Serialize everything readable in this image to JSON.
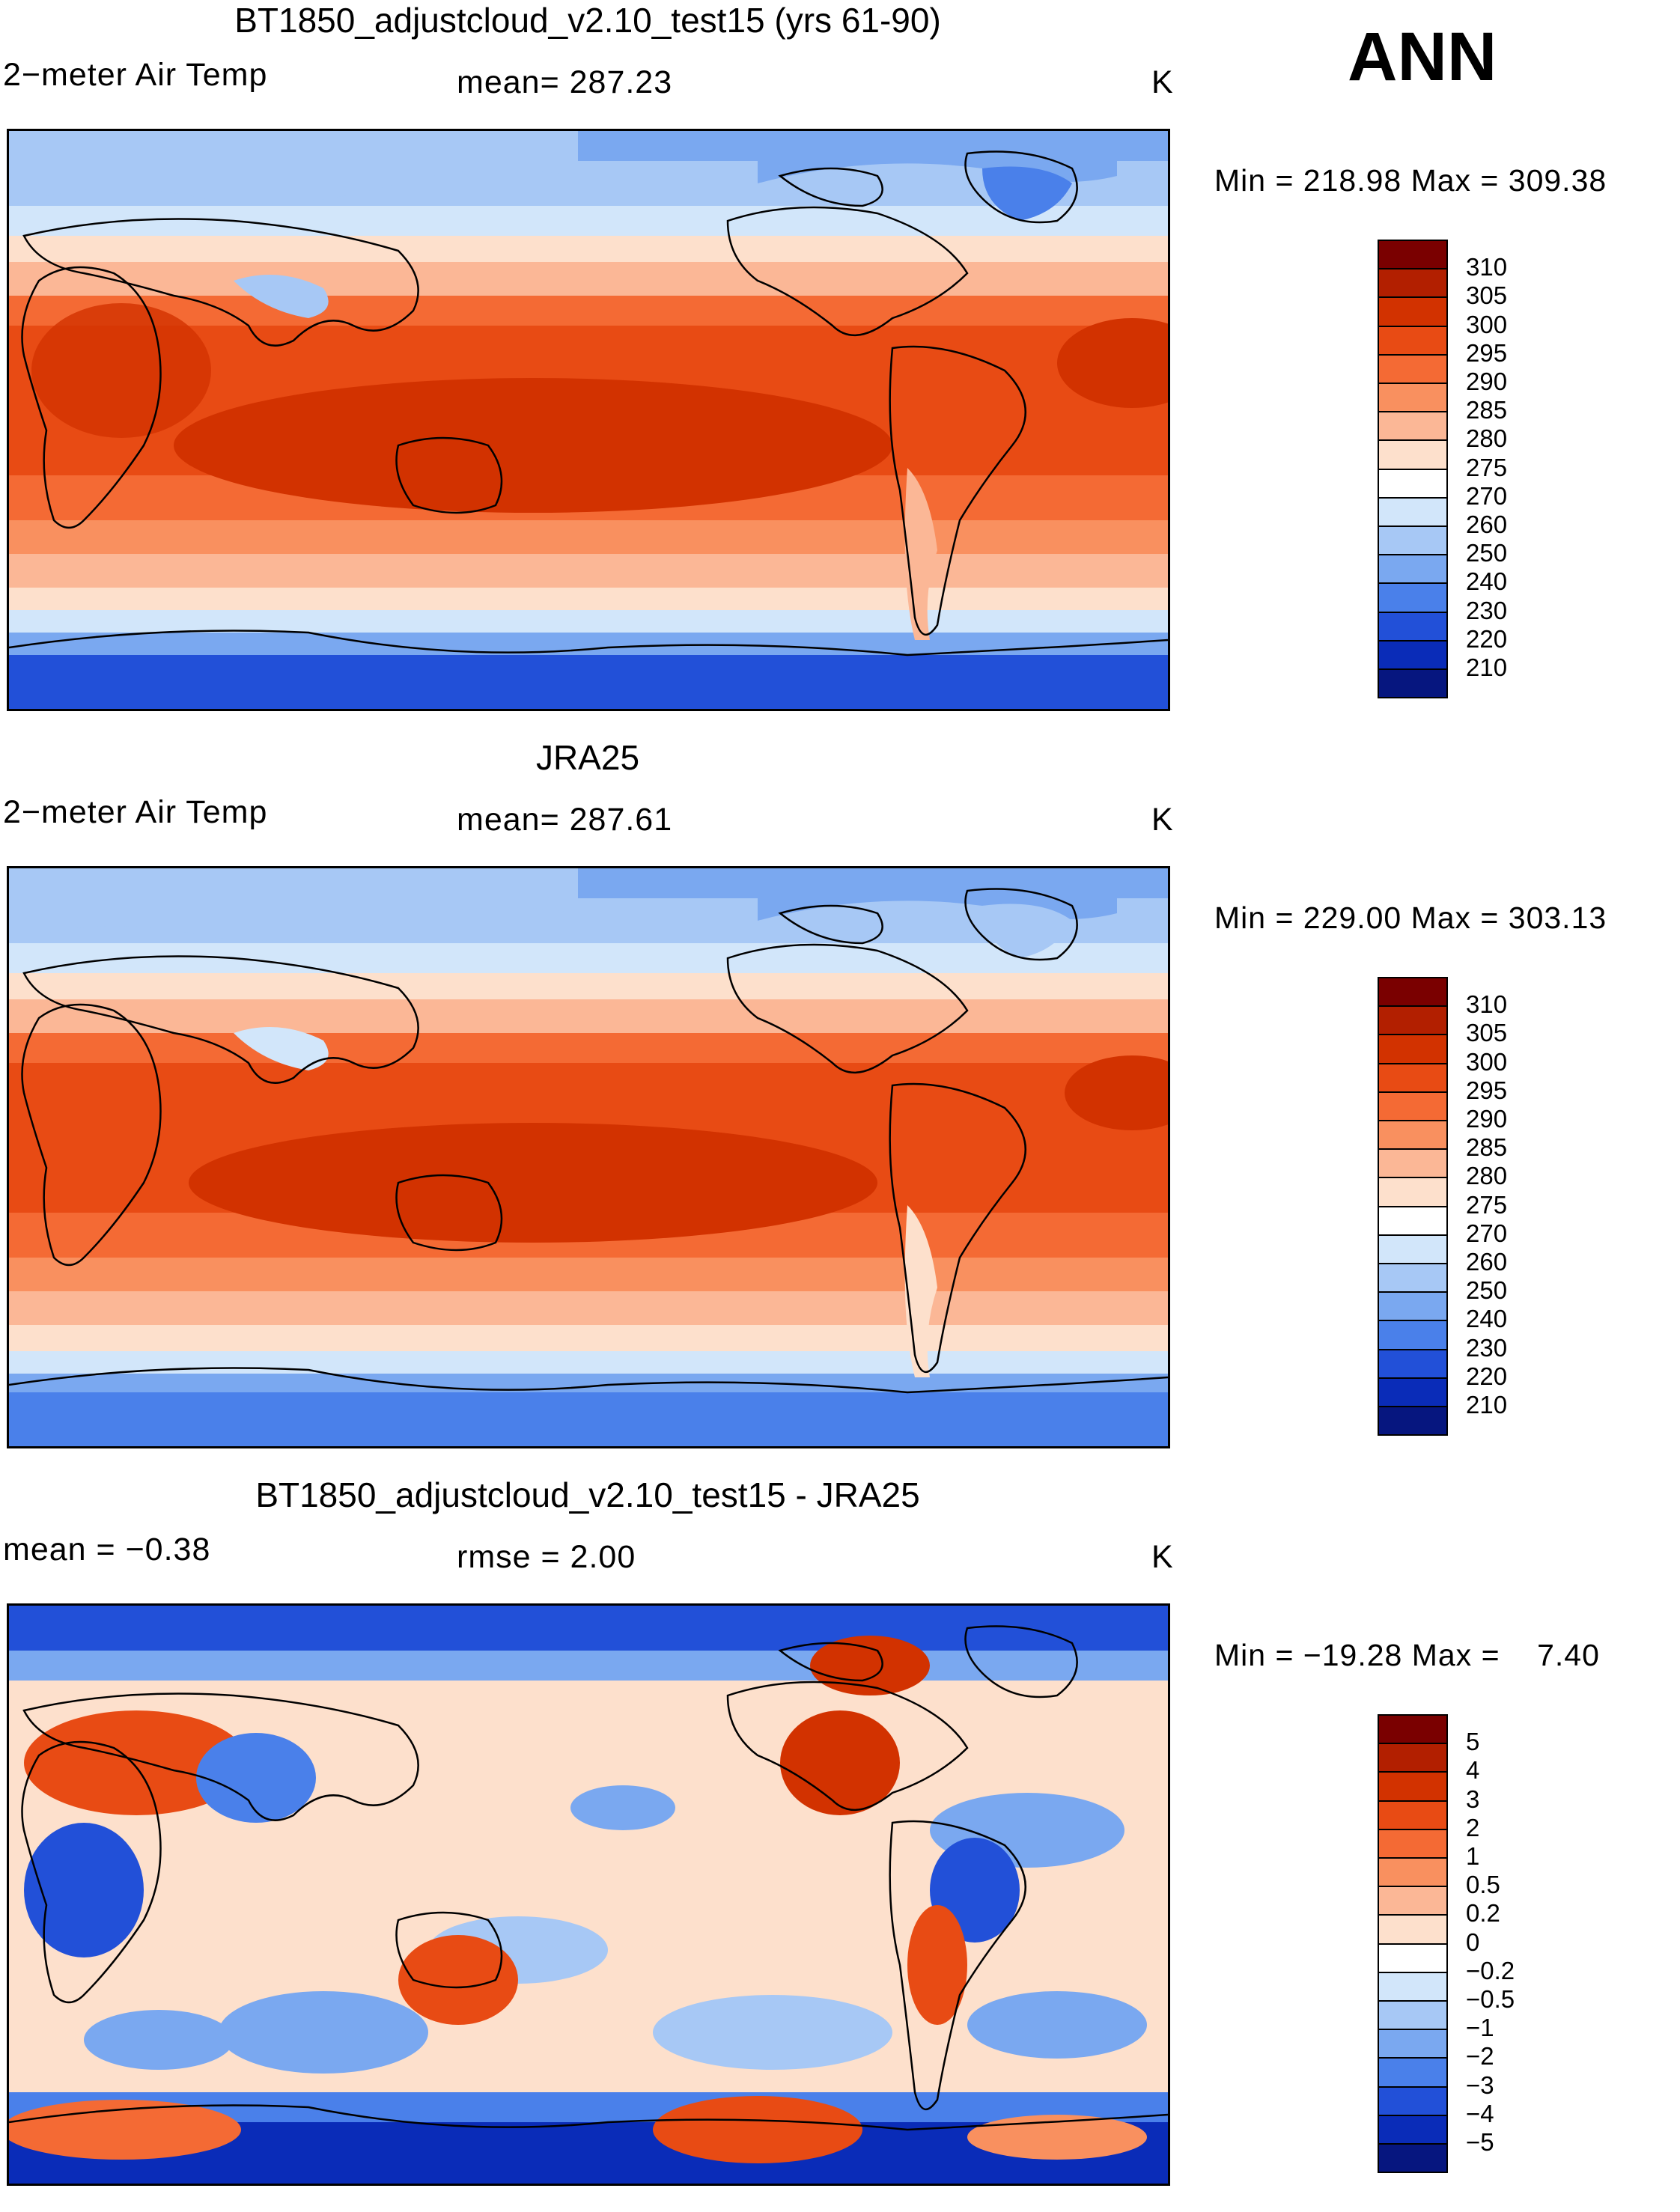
{
  "season": "ANN",
  "panels": [
    {
      "title": "BT1850_adjustcloud_v2.10_test15 (yrs 61-90)",
      "variable": "2−meter Air Temp",
      "mean_label": "mean= 287.23",
      "units": "K",
      "minmax": "Min = 218.98 Max = 309.38",
      "kind": "abs"
    },
    {
      "title": "JRA25",
      "variable": "2−meter Air Temp",
      "mean_label": "mean= 287.61",
      "units": "K",
      "minmax": "Min = 229.00 Max = 303.13",
      "kind": "abs"
    },
    {
      "title": "BT1850_adjustcloud_v2.10_test15 - JRA25",
      "variable": "mean =   −0.38",
      "mean_label": "rmse =    2.00",
      "units": "K",
      "minmax": "Min = −19.28 Max =    7.40",
      "kind": "diff"
    }
  ],
  "colorbar_abs": {
    "labels": [
      "310",
      "305",
      "300",
      "295",
      "290",
      "285",
      "280",
      "275",
      "270",
      "260",
      "250",
      "240",
      "230",
      "220",
      "210"
    ],
    "colors": [
      "#7a0000",
      "#b21f00",
      "#d23200",
      "#e84b14",
      "#f46a34",
      "#f9905f",
      "#fbb796",
      "#fde0cc",
      "#ffffff",
      "#d2e6fa",
      "#a7c8f5",
      "#7aa8f0",
      "#4a80ea",
      "#2250d8",
      "#0a2cb8",
      "#06167f"
    ]
  },
  "colorbar_diff": {
    "labels": [
      "5",
      "4",
      "3",
      "2",
      "1",
      "0.5",
      "0.2",
      "0",
      "−0.2",
      "−0.5",
      "−1",
      "−2",
      "−3",
      "−4",
      "−5"
    ],
    "colors": [
      "#7a0000",
      "#b21f00",
      "#d23200",
      "#e84b14",
      "#f46a34",
      "#f9905f",
      "#fbb796",
      "#fde0cc",
      "#ffffff",
      "#d2e6fa",
      "#a7c8f5",
      "#7aa8f0",
      "#4a80ea",
      "#2250d8",
      "#0a2cb8",
      "#06167f"
    ]
  }
}
